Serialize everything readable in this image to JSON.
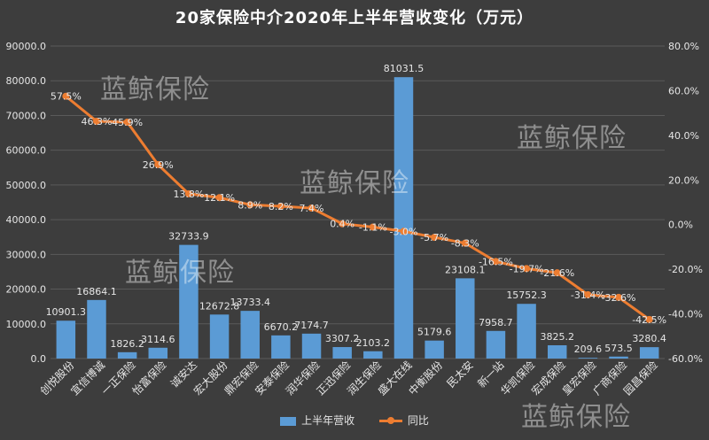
{
  "title": "20家保险中介2020年上半年营收变化（万元）",
  "watermark": "蓝鲸保险",
  "legend": {
    "bar_label": "上半年营收",
    "line_label": "同比"
  },
  "colors": {
    "bar": "#5b9bd5",
    "line": "#ed7d31",
    "background": "#3d3d3d",
    "grid": "#5a5a5a",
    "text": "#e6e6e6"
  },
  "chart_data": {
    "type": "bar",
    "title": "20家保险中介2020年上半年营收变化（万元）",
    "categories": [
      "创悦股份",
      "宜信博诚",
      "一正保险",
      "怡富保险",
      "诚安达",
      "宏大股份",
      "鼎宏保险",
      "安泰保险",
      "润华保险",
      "正迅保险",
      "润生保险",
      "盛大在线",
      "中衡股份",
      "民太安",
      "新一站",
      "华凯保险",
      "宏成保险",
      "皇宏保险",
      "广商保险",
      "园昌保险"
    ],
    "series": [
      {
        "name": "上半年营收",
        "type": "bar",
        "axis": "left",
        "values": [
          10901.3,
          16864.1,
          1826.2,
          3114.6,
          32733.9,
          12672.8,
          13733.4,
          6670.2,
          7174.7,
          3307.2,
          2103.2,
          81031.5,
          5179.6,
          23108.1,
          7958.7,
          15752.3,
          3825.2,
          209.6,
          573.5,
          3280.4
        ],
        "labels": [
          "10901.3",
          "16864.1",
          "1826.2",
          "3114.6",
          "32733.9",
          "12672.8",
          "13733.4",
          "6670.2",
          "7174.7",
          "3307.2",
          "2103.2",
          "81031.5",
          "5179.6",
          "23108.1",
          "7958.7",
          "15752.3",
          "3825.2",
          "209.6",
          "573.5",
          "3280.4"
        ]
      },
      {
        "name": "同比",
        "type": "line",
        "axis": "right",
        "values": [
          57.5,
          46.3,
          45.9,
          26.9,
          13.8,
          12.1,
          8.9,
          8.2,
          7.4,
          0.4,
          -1.1,
          -3.0,
          -5.7,
          -8.3,
          -16.5,
          -19.7,
          -21.6,
          -31.4,
          -32.6,
          -42.5
        ],
        "labels": [
          "57.5%",
          "46.3%",
          "45.9%",
          "26.9%",
          "13.8%",
          "12.1%",
          "8.9%",
          "8.2%",
          "7.4%",
          "0.4%",
          "-1.1%",
          "-3.0%",
          "-5.7%",
          "-8.3%",
          "-16.5%",
          "-19.7%",
          "-21.6%",
          "-31.4%",
          "-32.6%",
          "-42.5%"
        ]
      }
    ],
    "ylim": [
      0,
      90000
    ],
    "yticks": [
      "0.0",
      "10000.0",
      "20000.0",
      "30000.0",
      "40000.0",
      "50000.0",
      "60000.0",
      "70000.0",
      "80000.0",
      "90000.0"
    ],
    "y2lim": [
      -60,
      80
    ],
    "y2ticks": [
      "-60.0%",
      "-40.0%",
      "-20.0%",
      "0.0%",
      "20.0%",
      "40.0%",
      "60.0%",
      "80.0%"
    ],
    "grid": true,
    "legend_position": "bottom"
  }
}
